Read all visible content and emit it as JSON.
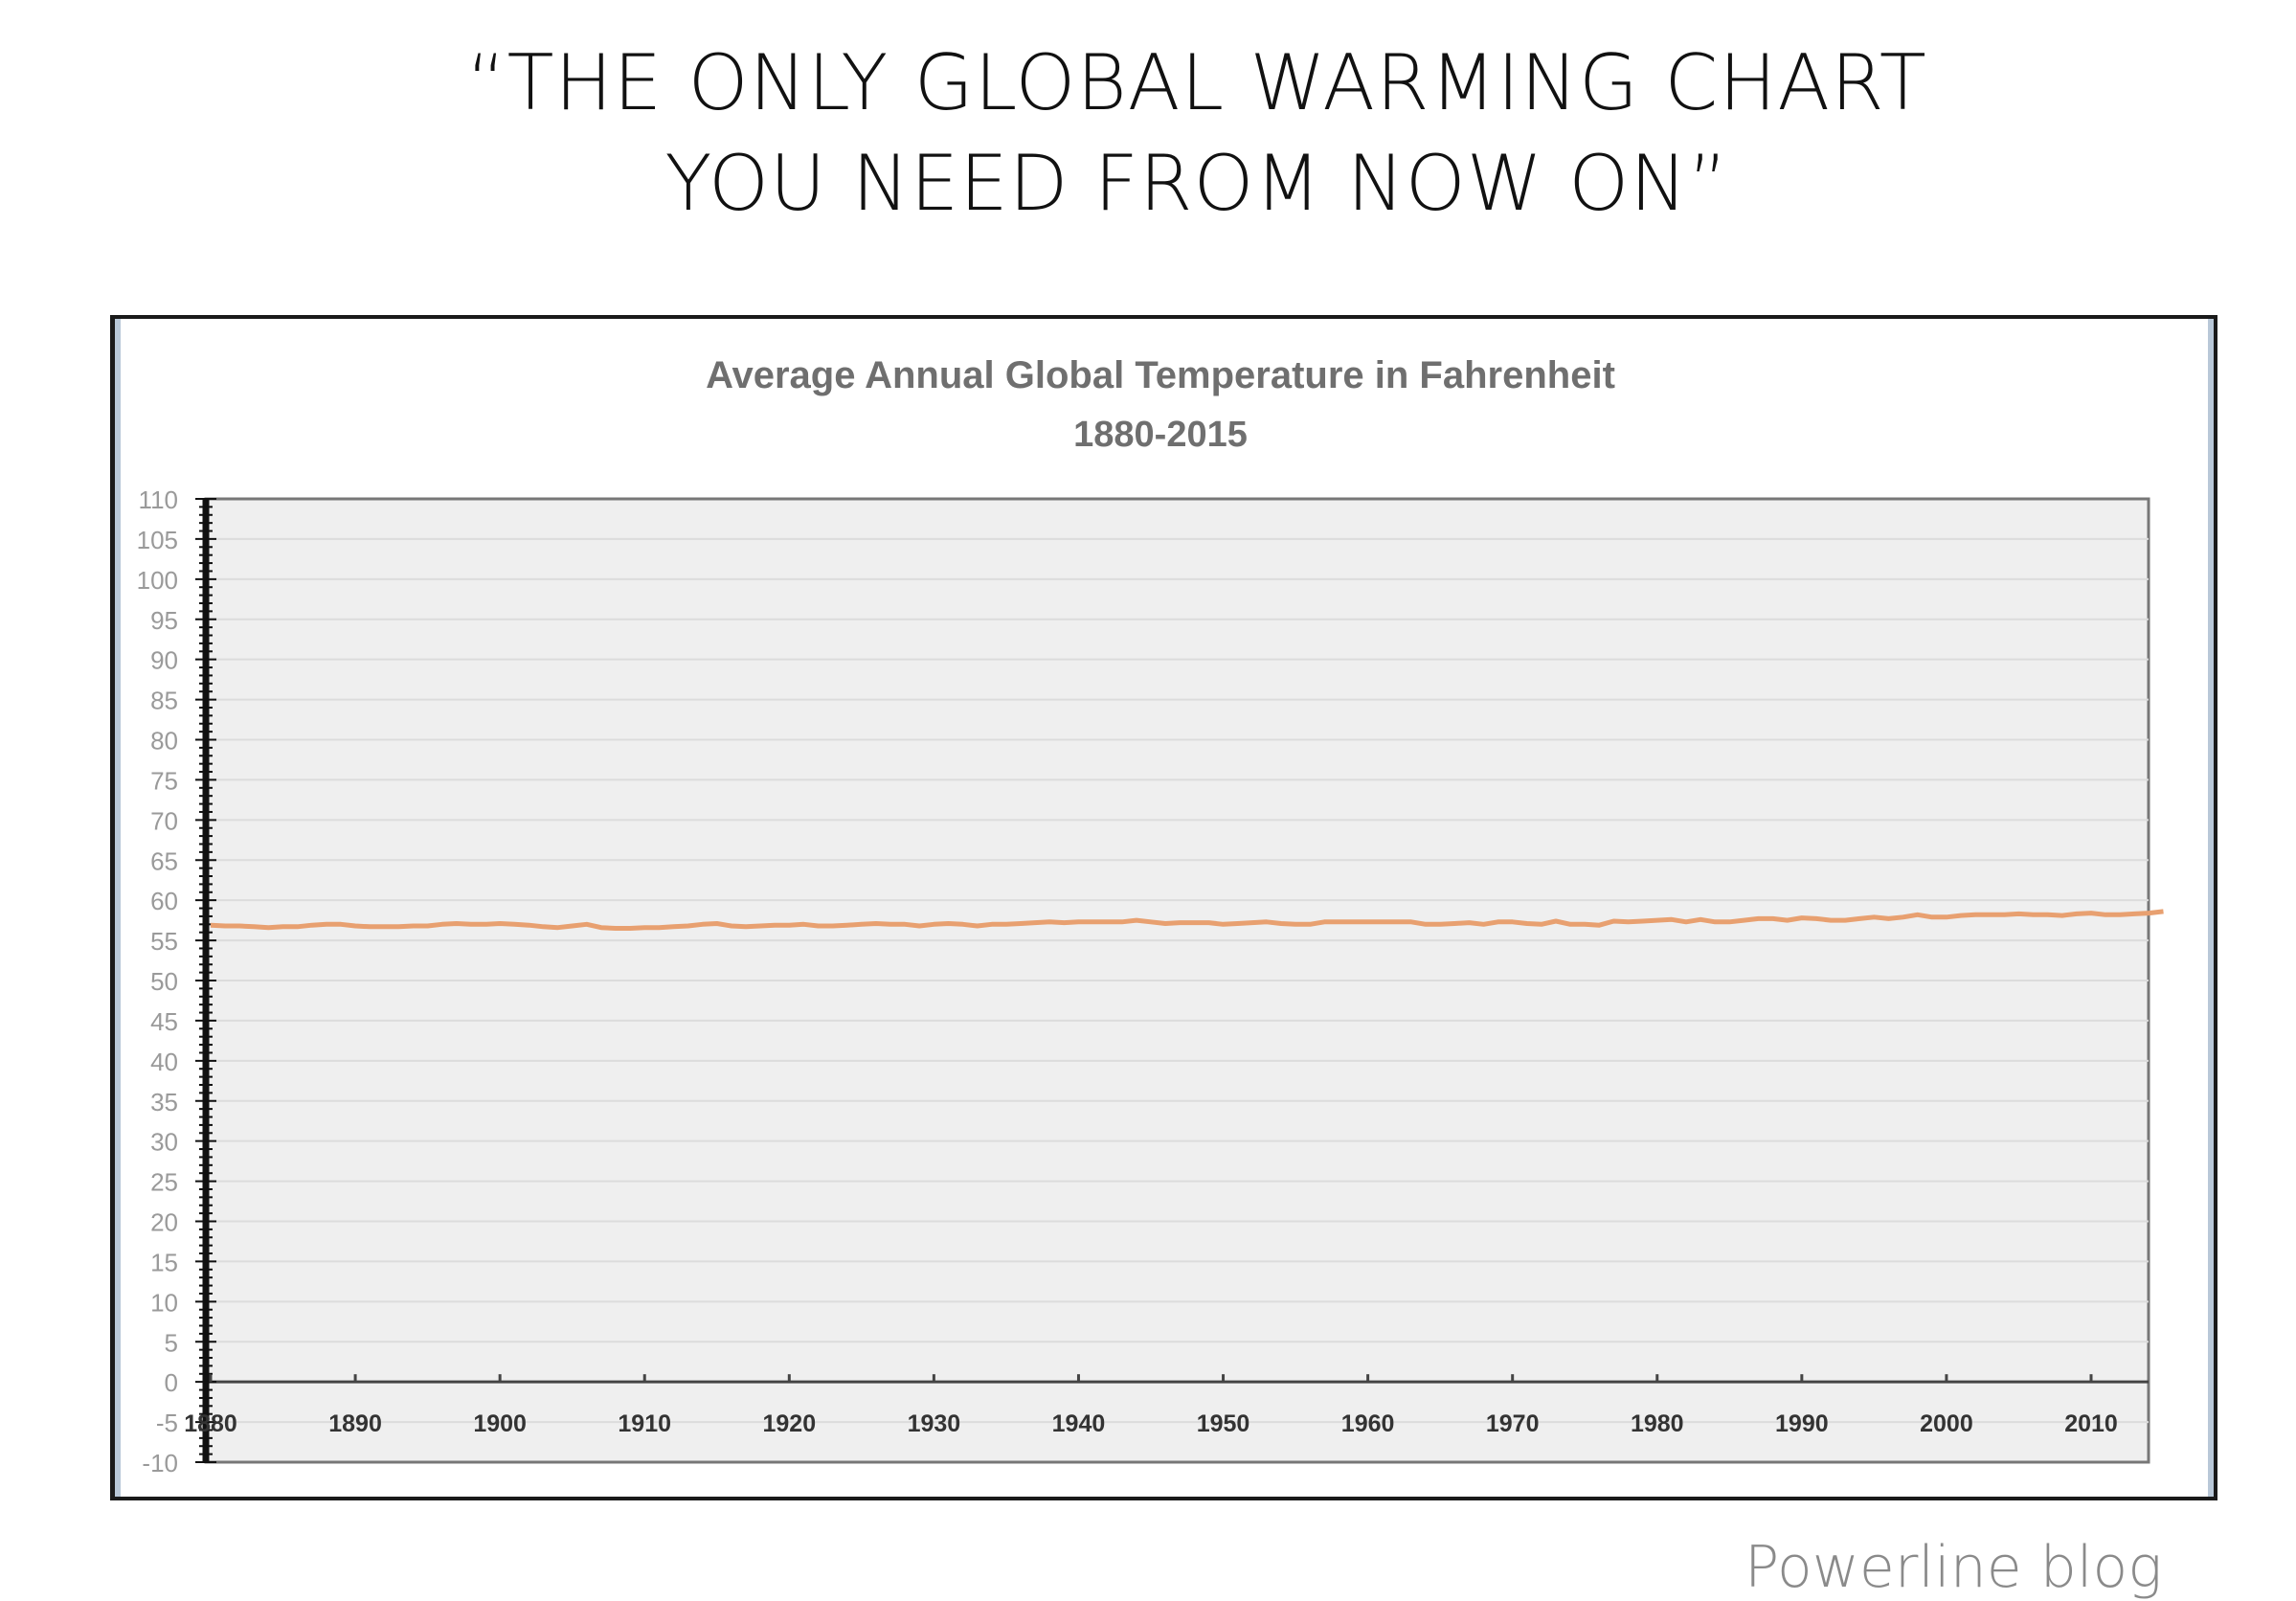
{
  "headline": {
    "line1": "“THE ONLY GLOBAL WARMING CHART",
    "line2": "YOU NEED FROM NOW ON”"
  },
  "credit": "Powerline blog",
  "chart_data": {
    "type": "line",
    "title": "Average Annual Global Temperature in Fahrenheit",
    "subtitle": "1880-2015",
    "xlabel": "",
    "ylabel": "",
    "xlim": [
      1880,
      2015
    ],
    "ylim": [
      -10,
      110
    ],
    "y_ticks": [
      110,
      105,
      100,
      95,
      90,
      85,
      80,
      75,
      70,
      65,
      60,
      55,
      50,
      45,
      40,
      35,
      30,
      25,
      20,
      15,
      10,
      5,
      0,
      -5,
      -10
    ],
    "x_ticks": [
      1880,
      1890,
      1900,
      1910,
      1920,
      1930,
      1940,
      1950,
      1960,
      1970,
      1980,
      1990,
      2000,
      2010
    ],
    "grid": true,
    "legend": "none",
    "colors": {
      "line": "#e8a070",
      "plot_bg": "#efefef",
      "grid": "#dcdcdc"
    },
    "series": [
      {
        "x_start": 1880,
        "values": [
          56.9,
          56.8,
          56.8,
          56.7,
          56.6,
          56.7,
          56.7,
          56.9,
          57.0,
          57.0,
          56.8,
          56.7,
          56.7,
          56.7,
          56.8,
          56.8,
          57.0,
          57.1,
          57.0,
          57.0,
          57.1,
          57.0,
          56.9,
          56.7,
          56.6,
          56.8,
          57.0,
          56.6,
          56.5,
          56.5,
          56.6,
          56.6,
          56.7,
          56.8,
          57.0,
          57.1,
          56.8,
          56.7,
          56.8,
          56.9,
          56.9,
          57.0,
          56.8,
          56.8,
          56.9,
          57.0,
          57.1,
          57.0,
          57.0,
          56.8,
          57.0,
          57.1,
          57.0,
          56.8,
          57.0,
          57.0,
          57.1,
          57.2,
          57.3,
          57.2,
          57.3,
          57.3,
          57.3,
          57.3,
          57.5,
          57.3,
          57.1,
          57.2,
          57.2,
          57.2,
          57.0,
          57.1,
          57.2,
          57.3,
          57.1,
          57.0,
          57.0,
          57.3,
          57.3,
          57.3,
          57.3,
          57.3,
          57.3,
          57.3,
          57.0,
          57.0,
          57.1,
          57.2,
          57.0,
          57.3,
          57.3,
          57.1,
          57.0,
          57.4,
          57.0,
          57.0,
          56.9,
          57.4,
          57.3,
          57.4,
          57.5,
          57.6,
          57.3,
          57.6,
          57.3,
          57.3,
          57.5,
          57.7,
          57.7,
          57.5,
          57.8,
          57.7,
          57.5,
          57.5,
          57.7,
          57.9,
          57.7,
          57.9,
          58.2,
          57.9,
          57.9,
          58.1,
          58.2,
          58.2,
          58.2,
          58.3,
          58.2,
          58.2,
          58.1,
          58.3,
          58.4,
          58.2,
          58.2,
          58.3,
          58.4,
          58.6
        ]
      }
    ]
  }
}
